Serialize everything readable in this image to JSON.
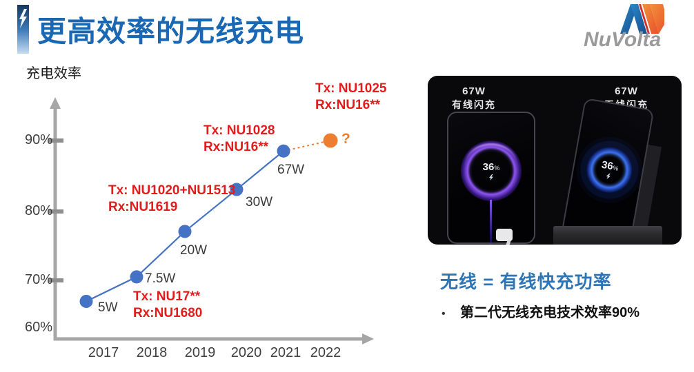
{
  "colors": {
    "title_blue": "#1a68b3",
    "heading_blue": "#2e75b6",
    "annotation_red": "#e31b1b",
    "series_blue": "#4472c4",
    "projection_orange": "#ed7d31",
    "axis_gray": "#a6a6a6",
    "label_gray": "#3f3f3f",
    "logo_gray": "#9a9a9a"
  },
  "header": {
    "title": "更高效率的无线充电",
    "logo_text": "NuVolta"
  },
  "chart_data": {
    "type": "line",
    "title": "",
    "ylabel": "充电效率",
    "xlabel": "",
    "grid": false,
    "legend": "none",
    "ylim": [
      58,
      95
    ],
    "x": [
      "2017",
      "2018",
      "2019",
      "2020",
      "2021",
      "2022"
    ],
    "y_tick_labels": [
      "90%",
      "80%",
      "70%",
      "60%"
    ],
    "series": [
      {
        "name": "efficiency",
        "color": "#4472c4",
        "values": [
          67,
          70.5,
          77,
          83,
          88.5,
          90
        ],
        "last_point_projected": true,
        "projection_color": "#ed7d31",
        "projection_style": "dashed",
        "point_labels": [
          "5W",
          "7.5W",
          "20W",
          "30W",
          "67W",
          "?"
        ]
      }
    ],
    "annotations": [
      {
        "lines": [
          "Tx: NU17**",
          "Rx:NU1680"
        ]
      },
      {
        "lines": [
          "Tx: NU1020+NU1513",
          "Rx:NU1619"
        ]
      },
      {
        "lines": [
          "Tx: NU1028",
          "Rx:NU16**"
        ]
      },
      {
        "lines": [
          "Tx: NU1025",
          "Rx:NU16**"
        ]
      }
    ]
  },
  "product": {
    "left_label_power": "67W",
    "left_label_mode": "有线闪充",
    "right_label_power": "67W",
    "right_label_mode": "无线闪充",
    "battery_value": "36",
    "battery_unit": "%"
  },
  "caption": {
    "heading": "无线 = 有线快充功率",
    "bullet_marker": "•",
    "bullet": "第二代无线充电技术效率90%"
  }
}
